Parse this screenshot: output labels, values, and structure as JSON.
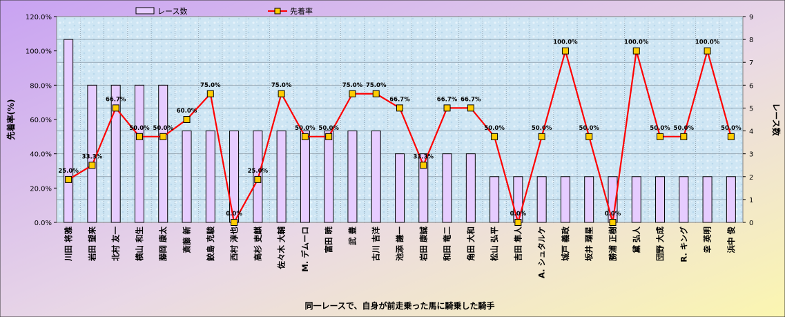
{
  "chart_data": {
    "type": "bar",
    "title": "",
    "xlabel": "同一レースで、自身が前走乗った馬に騎乗した騎手",
    "ylabel_left": "先着率(%)",
    "ylabel_right": "レース数",
    "ylim_left": [
      0,
      120
    ],
    "ylim_right": [
      0,
      9
    ],
    "left_ticks": [
      "0.0%",
      "20.0%",
      "40.0%",
      "60.0%",
      "80.0%",
      "100.0%",
      "120.0%"
    ],
    "right_ticks": [
      "0",
      "1",
      "2",
      "3",
      "4",
      "5",
      "6",
      "7",
      "8",
      "9"
    ],
    "grid": true,
    "legend": {
      "placement": "top",
      "items": [
        "レース数",
        "先着率"
      ]
    },
    "categories": [
      "川田 将雅",
      "岩田 望来",
      "北村 友一",
      "横山 和生",
      "藤岡 康太",
      "斎藤 新",
      "鮫島 克駿",
      "西村 淳也",
      "高杉 吏麒",
      "佐々木 大輔",
      "M. デムーロ",
      "富田 暁",
      "武 豊",
      "古川 吉洋",
      "池添 謙一",
      "岩田 康誠",
      "和田 竜二",
      "角田 大和",
      "松山 弘平",
      "吉田 隼人",
      "A. シュタルケ",
      "城戸 義政",
      "坂井 瑠星",
      "勝浦 正樹",
      "黛 弘人",
      "団野 大成",
      "R. キング",
      "幸 英明",
      "浜中 俊"
    ],
    "series": [
      {
        "name": "レース数",
        "type": "bar",
        "axis": "right",
        "values": [
          8,
          6,
          6,
          6,
          6,
          4,
          4,
          4,
          4,
          4,
          4,
          4,
          4,
          4,
          3,
          3,
          3,
          3,
          2,
          2,
          2,
          2,
          2,
          2,
          2,
          2,
          2,
          2,
          2
        ]
      },
      {
        "name": "先着率",
        "type": "line",
        "axis": "left",
        "values": [
          25.0,
          33.3,
          66.7,
          50.0,
          50.0,
          60.0,
          75.0,
          0.0,
          25.0,
          75.0,
          50.0,
          50.0,
          75.0,
          75.0,
          66.7,
          33.3,
          66.7,
          66.7,
          50.0,
          0.0,
          50.0,
          100.0,
          50.0,
          0.0,
          100.0,
          50.0,
          50.0,
          100.0,
          50.0
        ],
        "labels": [
          "25.0%",
          "33.3%",
          "66.7%",
          "50.0%",
          "50.0%",
          "60.0%",
          "75.0%",
          "0.0%",
          "25.0%",
          "75.0%",
          "50.0%",
          "50.0%",
          "75.0%",
          "75.0%",
          "66.7%",
          "33.3%",
          "66.7%",
          "66.7%",
          "50.0%",
          "0.0%",
          "50.0%",
          "100.0%",
          "50.0%",
          "0.0%",
          "100.0%",
          "50.0%",
          "50.0%",
          "100.0%",
          "50.0%"
        ]
      }
    ],
    "colors": {
      "bar_fill": "#e6ccff",
      "bar_stroke": "#000000",
      "line": "#ff0000",
      "marker_fill": "#ffcc00",
      "marker_stroke": "#000000",
      "outer_bg_left": "#cfa6f0",
      "outer_bg_right": "#f8f4b8",
      "plot_bg": "#cfe6f4",
      "grid": "#8a9aa6"
    }
  }
}
